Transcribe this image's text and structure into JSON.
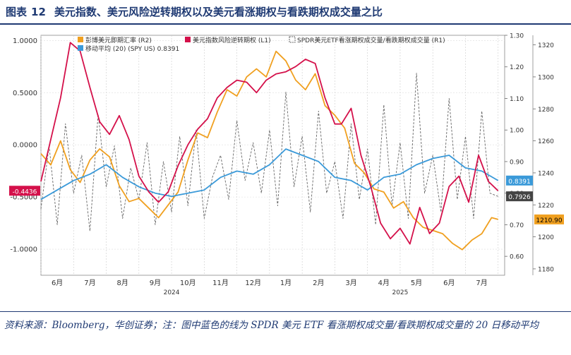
{
  "header": {
    "figure_label": "图表",
    "figure_number": "12",
    "title": "美元指数、美元风险逆转期权以及美元看涨期权与看跌期权成交量之比"
  },
  "footer": {
    "source_note": "资料来源：Bloomberg，华创证券；注：图中蓝色的线为 SPDR 美元 ETF 看涨期权成交量/看跌期权成交量的 20 日移动平均"
  },
  "colors": {
    "red": "#d4104a",
    "orange": "#f0a020",
    "blue": "#3b9ad9",
    "dashed": "#666666"
  },
  "chart_data": {
    "type": "line",
    "x_labels": [
      "6月",
      "7月",
      "8月",
      "9月",
      "10月",
      "11月",
      "12月",
      "1月",
      "2月",
      "3月",
      "4月",
      "5月",
      "6月",
      "7月"
    ],
    "year_labels": [
      "2024",
      "2025"
    ],
    "left_axis": {
      "ticks": [
        "1.0000",
        "0.5000",
        "0.0000",
        "-0.5000",
        "-1.0000"
      ],
      "range": [
        -1.25,
        1.05
      ]
    },
    "right_axis_1": {
      "ticks": [
        "1.30",
        "1.20",
        "1.10",
        "1.00",
        "0.90",
        "0.80",
        "0.70",
        "0.60"
      ],
      "range": [
        0.54,
        1.3
      ]
    },
    "right_axis_2": {
      "ticks": [
        "1320",
        "1300",
        "1280",
        "1260",
        "1240",
        "1220",
        "1200",
        "1180"
      ],
      "range": [
        1176,
        1326
      ]
    },
    "series": [
      {
        "name": "美元指数风险逆转期权 (L1)",
        "color": "#d4104a",
        "last_label": "-0.4436",
        "x": [
          0,
          0.3,
          0.6,
          0.9,
          1.2,
          1.5,
          1.8,
          2.1,
          2.4,
          2.7,
          3.0,
          3.3,
          3.6,
          3.9,
          4.2,
          4.5,
          4.8,
          5.1,
          5.4,
          5.7,
          6.0,
          6.3,
          6.6,
          6.9,
          7.2,
          7.5,
          7.8,
          8.1,
          8.4,
          8.7,
          9.0,
          9.2,
          9.5,
          9.8,
          10.1,
          10.4,
          10.7,
          11.0,
          11.3,
          11.6,
          11.9,
          12.2,
          12.5,
          12.8,
          13.1,
          13.4,
          13.7,
          14.0
        ],
        "y": [
          -0.35,
          0.05,
          0.45,
          0.98,
          0.9,
          0.55,
          0.22,
          0.1,
          0.28,
          0.05,
          -0.3,
          -0.45,
          -0.55,
          -0.45,
          -0.2,
          0.0,
          0.15,
          0.25,
          0.45,
          0.55,
          0.62,
          0.6,
          0.5,
          0.62,
          0.68,
          0.7,
          0.75,
          0.82,
          0.78,
          0.45,
          0.2,
          0.2,
          0.35,
          -0.1,
          -0.4,
          -0.75,
          -0.9,
          -0.8,
          -0.95,
          -0.6,
          -0.85,
          -0.75,
          -0.4,
          -0.3,
          -0.55,
          -0.1,
          -0.35,
          -0.44
        ]
      },
      {
        "name": "彭博美元即期汇率 (R2)",
        "color": "#f0a020",
        "last_label": "1210.90",
        "x": [
          0,
          0.3,
          0.6,
          0.9,
          1.2,
          1.5,
          1.8,
          2.1,
          2.4,
          2.7,
          3.0,
          3.3,
          3.6,
          3.9,
          4.2,
          4.5,
          4.8,
          5.1,
          5.4,
          5.7,
          6.0,
          6.3,
          6.6,
          6.9,
          7.2,
          7.5,
          7.8,
          8.1,
          8.4,
          8.7,
          9.0,
          9.3,
          9.6,
          9.9,
          10.2,
          10.5,
          10.8,
          11.1,
          11.4,
          11.7,
          12.0,
          12.3,
          12.6,
          12.9,
          13.2,
          13.5,
          13.8,
          14.0
        ],
        "y": [
          1252,
          1245,
          1260,
          1242,
          1234,
          1248,
          1255,
          1250,
          1232,
          1222,
          1224,
          1218,
          1212,
          1220,
          1228,
          1248,
          1265,
          1262,
          1278,
          1292,
          1288,
          1300,
          1305,
          1300,
          1316,
          1310,
          1298,
          1292,
          1302,
          1282,
          1276,
          1268,
          1246,
          1240,
          1230,
          1228,
          1218,
          1222,
          1212,
          1206,
          1204,
          1202,
          1196,
          1192,
          1198,
          1202,
          1212,
          1210.9
        ]
      },
      {
        "name": "移动平均 (20) (SPY US) 0.8391",
        "color": "#3b9ad9",
        "last_label": "0.8391",
        "x": [
          0,
          0.5,
          1.0,
          1.5,
          2.0,
          2.5,
          3.0,
          3.5,
          4.0,
          4.5,
          5.0,
          5.5,
          6.0,
          6.5,
          7.0,
          7.5,
          8.0,
          8.5,
          9.0,
          9.5,
          10.0,
          10.5,
          11.0,
          11.5,
          12.0,
          12.5,
          13.0,
          13.5,
          14.0
        ],
        "y": [
          0.78,
          0.81,
          0.84,
          0.86,
          0.89,
          0.85,
          0.82,
          0.8,
          0.79,
          0.8,
          0.81,
          0.85,
          0.87,
          0.86,
          0.89,
          0.94,
          0.92,
          0.9,
          0.85,
          0.84,
          0.81,
          0.85,
          0.86,
          0.89,
          0.91,
          0.92,
          0.88,
          0.87,
          0.84
        ]
      },
      {
        "name": "SPDR美元ETF看涨期权成交量/看跌期权成交量 (R1)",
        "color": "#666666",
        "last_label": "0.7926",
        "x": [
          0,
          0.25,
          0.5,
          0.75,
          1.0,
          1.25,
          1.5,
          1.75,
          2.0,
          2.25,
          2.5,
          2.75,
          3.0,
          3.25,
          3.5,
          3.75,
          4.0,
          4.25,
          4.5,
          4.75,
          5.0,
          5.25,
          5.5,
          5.75,
          6.0,
          6.25,
          6.5,
          6.75,
          7.0,
          7.25,
          7.5,
          7.75,
          8.0,
          8.25,
          8.5,
          8.75,
          9.0,
          9.25,
          9.5,
          9.75,
          10.0,
          10.25,
          10.5,
          10.75,
          11.0,
          11.25,
          11.5,
          11.75,
          12.0,
          12.25,
          12.5,
          12.75,
          13.0,
          13.25,
          13.5,
          13.75,
          14.0
        ],
        "y": [
          0.75,
          0.95,
          0.7,
          1.02,
          0.8,
          0.92,
          0.68,
          1.05,
          0.82,
          0.95,
          0.72,
          0.88,
          0.78,
          0.96,
          0.7,
          0.9,
          0.74,
          0.98,
          0.76,
          1.0,
          0.72,
          0.85,
          0.92,
          0.78,
          1.03,
          0.84,
          0.96,
          0.8,
          1.0,
          0.76,
          1.12,
          0.82,
          0.98,
          0.74,
          1.06,
          0.8,
          0.9,
          0.72,
          1.02,
          0.78,
          0.94,
          0.7,
          1.08,
          0.76,
          0.96,
          0.72,
          1.18,
          0.8,
          0.92,
          0.74,
          1.1,
          0.78,
          0.98,
          0.72,
          1.06,
          0.8,
          0.79
        ]
      }
    ]
  }
}
